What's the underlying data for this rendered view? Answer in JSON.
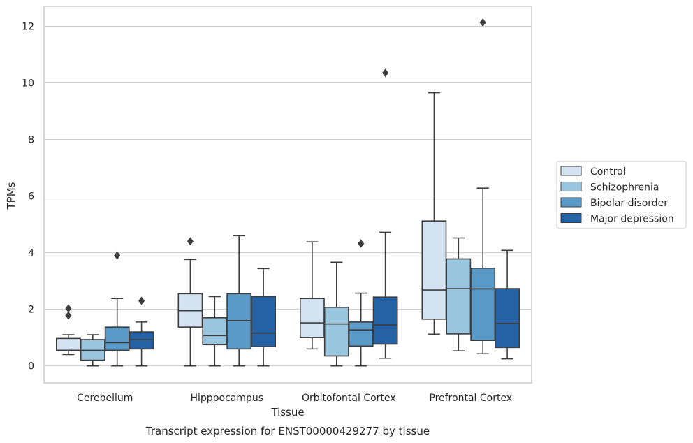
{
  "chart_data": {
    "type": "box",
    "caption": "Transcript expression for ENST00000429277 by tissue",
    "xlabel": "Tissue",
    "ylabel": "TPMs",
    "ylim": [
      -0.6,
      12.7
    ],
    "yticks": [
      "0",
      "2",
      "4",
      "6",
      "8",
      "10",
      "12"
    ],
    "grid": "horizontal",
    "legend_position": "right",
    "categories": [
      "Cerebellum",
      "Hipppocampus",
      "Orbitofontal Cortex",
      "Prefrontal Cortex"
    ],
    "series": [
      {
        "name": "Control",
        "color": "#d4e3f1",
        "boxes": [
          {
            "whislo": 0.4,
            "q1": 0.55,
            "med": 0.55,
            "q3": 0.97,
            "whishi": 1.1,
            "fliers": [
              1.78,
              2.03
            ]
          },
          {
            "whislo": 0.0,
            "q1": 1.37,
            "med": 1.95,
            "q3": 2.55,
            "whishi": 3.76,
            "fliers": [
              4.4
            ]
          },
          {
            "whislo": 0.6,
            "q1": 1.0,
            "med": 1.52,
            "q3": 2.38,
            "whishi": 4.38,
            "fliers": []
          },
          {
            "whislo": 1.12,
            "q1": 1.65,
            "med": 2.68,
            "q3": 5.12,
            "whishi": 9.65,
            "fliers": []
          }
        ]
      },
      {
        "name": "Schizophrenia",
        "color": "#9ac5df",
        "boxes": [
          {
            "whislo": 0.0,
            "q1": 0.2,
            "med": 0.55,
            "q3": 0.93,
            "whishi": 1.1,
            "fliers": []
          },
          {
            "whislo": 0.0,
            "q1": 0.75,
            "med": 1.07,
            "q3": 1.7,
            "whishi": 2.45,
            "fliers": []
          },
          {
            "whislo": 0.0,
            "q1": 0.35,
            "med": 1.48,
            "q3": 2.07,
            "whishi": 3.66,
            "fliers": []
          },
          {
            "whislo": 0.53,
            "q1": 1.13,
            "med": 2.73,
            "q3": 3.78,
            "whishi": 4.52,
            "fliers": []
          }
        ]
      },
      {
        "name": "Bipolar disorder",
        "color": "#5a9ac8",
        "boxes": [
          {
            "whislo": 0.0,
            "q1": 0.55,
            "med": 0.82,
            "q3": 1.37,
            "whishi": 2.38,
            "fliers": [
              3.9
            ]
          },
          {
            "whislo": 0.0,
            "q1": 0.6,
            "med": 1.6,
            "q3": 2.55,
            "whishi": 4.6,
            "fliers": []
          },
          {
            "whislo": 0.0,
            "q1": 0.7,
            "med": 1.27,
            "q3": 1.55,
            "whishi": 2.57,
            "fliers": [
              4.32
            ]
          },
          {
            "whislo": 0.43,
            "q1": 0.9,
            "med": 2.72,
            "q3": 3.45,
            "whishi": 6.28,
            "fliers": [
              12.13
            ]
          }
        ]
      },
      {
        "name": "Major depression",
        "color": "#2461a5",
        "boxes": [
          {
            "whislo": 0.0,
            "q1": 0.6,
            "med": 0.93,
            "q3": 1.2,
            "whishi": 1.55,
            "fliers": [
              2.3
            ]
          },
          {
            "whislo": 0.0,
            "q1": 0.68,
            "med": 1.16,
            "q3": 2.45,
            "whishi": 3.44,
            "fliers": []
          },
          {
            "whislo": 0.27,
            "q1": 0.77,
            "med": 1.45,
            "q3": 2.43,
            "whishi": 4.72,
            "fliers": [
              10.35
            ]
          },
          {
            "whislo": 0.25,
            "q1": 0.65,
            "med": 1.5,
            "q3": 2.73,
            "whishi": 4.08,
            "fliers": []
          }
        ]
      }
    ]
  }
}
